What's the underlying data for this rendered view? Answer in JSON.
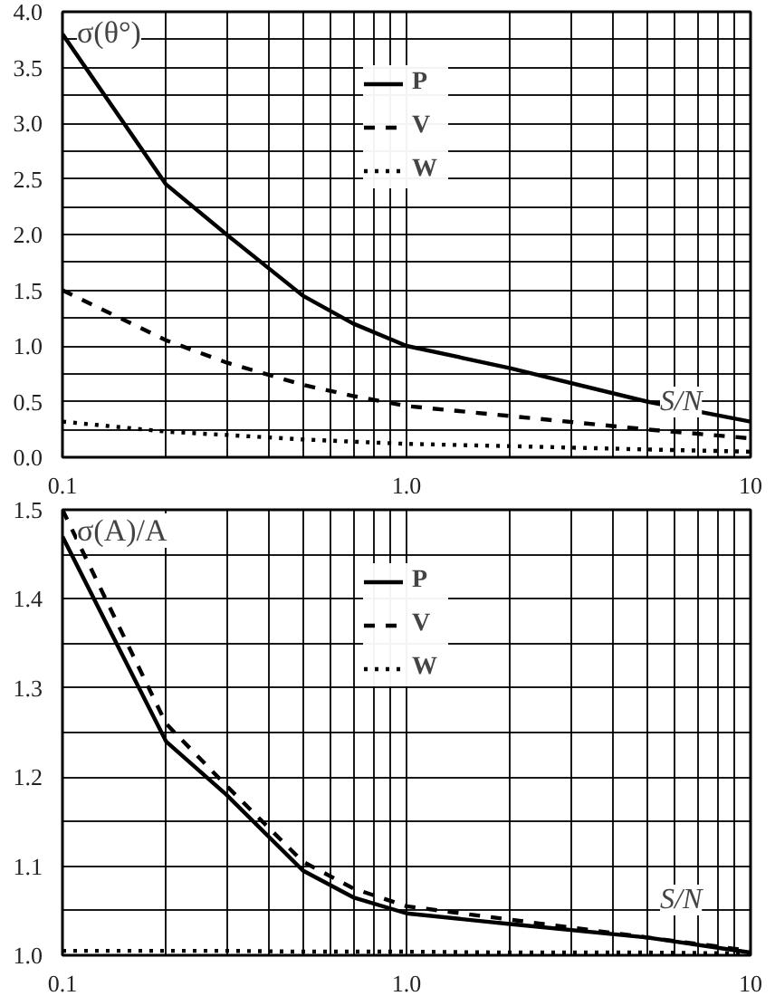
{
  "chart_data": [
    {
      "type": "line",
      "ylabel": "σ(θ°)",
      "xlabel": "S/N",
      "log": "x",
      "grid": true,
      "legend": "top",
      "tick_labels": "xy",
      "x": [
        0.1,
        0.2,
        0.3,
        0.5,
        0.7,
        1,
        2,
        5,
        10
      ],
      "xlim": [
        0.1,
        10
      ],
      "xticks": [
        {
          "value": 0.1,
          "label": "0.1"
        },
        {
          "value": 0.2,
          "label": null
        },
        {
          "value": 0.3,
          "label": null
        },
        {
          "value": 0.4,
          "label": null
        },
        {
          "value": 0.5,
          "label": null
        },
        {
          "value": 0.6,
          "label": null
        },
        {
          "value": 0.7,
          "label": null
        },
        {
          "value": 0.8,
          "label": null
        },
        {
          "value": 0.9,
          "label": null
        },
        {
          "value": 1,
          "label": "1.0"
        },
        {
          "value": 2,
          "label": null
        },
        {
          "value": 3,
          "label": null
        },
        {
          "value": 4,
          "label": null
        },
        {
          "value": 5,
          "label": null
        },
        {
          "value": 6,
          "label": null
        },
        {
          "value": 7,
          "label": null
        },
        {
          "value": 8,
          "label": null
        },
        {
          "value": 9,
          "label": null
        },
        10
      ],
      "ylim": [
        0,
        4
      ],
      "yticks": [
        {
          "value": 0,
          "label": "0.0"
        },
        {
          "value": 0.25,
          "label": null
        },
        0.5,
        {
          "value": 0.75,
          "label": null
        },
        {
          "value": 1,
          "label": "1.0"
        },
        {
          "value": 1.25,
          "label": null
        },
        1.5,
        {
          "value": 1.75,
          "label": null
        },
        {
          "value": 2,
          "label": "2.0"
        },
        {
          "value": 2.25,
          "label": null
        },
        2.5,
        {
          "value": 2.75,
          "label": null
        },
        {
          "value": 3,
          "label": "3.0"
        },
        {
          "value": 3.25,
          "label": null
        },
        3.5,
        {
          "value": 3.75,
          "label": null
        },
        {
          "value": 4,
          "label": "4.0"
        }
      ],
      "series": [
        {
          "name": "P",
          "color": "#000000",
          "line_style": "solid",
          "values": [
            3.8,
            2.45,
            2.0,
            1.45,
            1.2,
            1.0,
            0.8,
            0.5,
            0.32
          ]
        },
        {
          "name": "V",
          "color": "#000000",
          "line_style": "dashed",
          "values": [
            1.5,
            1.05,
            0.85,
            0.65,
            0.55,
            0.46,
            0.37,
            0.25,
            0.17
          ]
        },
        {
          "name": "W",
          "color": "#000000",
          "line_style": "dotted",
          "values": [
            0.32,
            0.23,
            0.2,
            0.16,
            0.14,
            0.12,
            0.1,
            0.07,
            0.05
          ]
        }
      ]
    },
    {
      "type": "line",
      "ylabel": "σ(A)/A",
      "xlabel": "S/N",
      "log": "x",
      "grid": true,
      "legend": "top",
      "tick_labels": "xy",
      "x": [
        0.1,
        0.2,
        0.3,
        0.5,
        0.7,
        1,
        2,
        5,
        10
      ],
      "xlim": [
        0.1,
        10
      ],
      "xticks": [
        {
          "value": 0.1,
          "label": "0.1"
        },
        {
          "value": 0.2,
          "label": null
        },
        {
          "value": 0.3,
          "label": null
        },
        {
          "value": 0.4,
          "label": null
        },
        {
          "value": 0.5,
          "label": null
        },
        {
          "value": 0.6,
          "label": null
        },
        {
          "value": 0.7,
          "label": null
        },
        {
          "value": 0.8,
          "label": null
        },
        {
          "value": 0.9,
          "label": null
        },
        {
          "value": 1,
          "label": "1.0"
        },
        {
          "value": 2,
          "label": null
        },
        {
          "value": 3,
          "label": null
        },
        {
          "value": 4,
          "label": null
        },
        {
          "value": 5,
          "label": null
        },
        {
          "value": 6,
          "label": null
        },
        {
          "value": 7,
          "label": null
        },
        {
          "value": 8,
          "label": null
        },
        {
          "value": 9,
          "label": null
        },
        10
      ],
      "ylim": [
        1.0,
        1.5
      ],
      "yticks": [
        {
          "value": 1.0,
          "label": "1.0"
        },
        {
          "value": 1.05,
          "label": null
        },
        1.1,
        {
          "value": 1.15,
          "label": null
        },
        1.2,
        {
          "value": 1.25,
          "label": null
        },
        1.3,
        {
          "value": 1.35,
          "label": null
        },
        1.4,
        {
          "value": 1.45,
          "label": null
        },
        1.5
      ],
      "series": [
        {
          "name": "P",
          "color": "#000000",
          "line_style": "solid",
          "values": [
            1.47,
            1.24,
            1.18,
            1.095,
            1.065,
            1.047,
            1.035,
            1.02,
            1.003
          ]
        },
        {
          "name": "V",
          "color": "#000000",
          "line_style": "dashed",
          "values": [
            1.5,
            1.26,
            1.19,
            1.105,
            1.075,
            1.055,
            1.04,
            1.02,
            1.005
          ]
        },
        {
          "name": "W",
          "color": "#000000",
          "line_style": "dotted",
          "values": [
            1.005,
            1.005,
            1.005,
            1.004,
            1.004,
            1.004,
            1.003,
            1.003,
            1.002
          ]
        }
      ]
    }
  ]
}
